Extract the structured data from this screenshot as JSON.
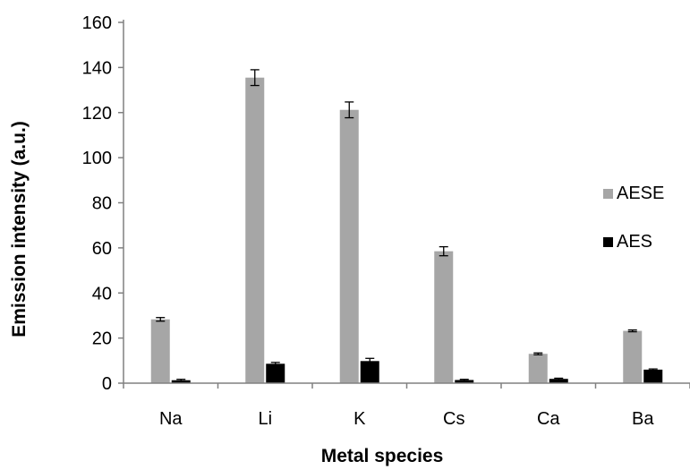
{
  "chart_data": {
    "type": "bar",
    "title": "",
    "xlabel": "Metal species",
    "ylabel": "Emission intensity (a.u.)",
    "ylim": [
      0,
      160
    ],
    "yticks": [
      0,
      20,
      40,
      60,
      80,
      100,
      120,
      140,
      160
    ],
    "grid": false,
    "legend_position": "right",
    "categories": [
      "Na",
      "Li",
      "K",
      "Cs",
      "Ca",
      "Ba"
    ],
    "series": [
      {
        "name": "AESE",
        "color": "#a6a6a6",
        "values": [
          28.3,
          135.5,
          121.2,
          58.5,
          13.0,
          23.2
        ],
        "errors": [
          0.8,
          3.5,
          3.5,
          2.0,
          0.4,
          0.4
        ]
      },
      {
        "name": "AES",
        "color": "#000000",
        "values": [
          1.3,
          8.6,
          9.8,
          1.4,
          1.9,
          6.0
        ],
        "errors": [
          0.4,
          0.6,
          1.2,
          0.3,
          0.3,
          0.3
        ]
      }
    ]
  }
}
